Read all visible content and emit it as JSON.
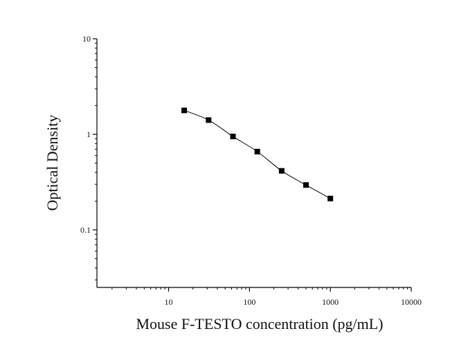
{
  "chart_data": {
    "type": "scatter",
    "title": "",
    "xlabel": "Mouse F-TESTO concentration (pg/mL)",
    "ylabel": "Optical Density",
    "xscale": "log",
    "yscale": "log",
    "xlim": [
      1.3,
      10000
    ],
    "ylim": [
      0.025,
      10
    ],
    "x_ticks": [
      10,
      100,
      1000,
      10000
    ],
    "x_tick_labels": [
      "10",
      "100",
      "1000",
      "10000"
    ],
    "y_ticks": [
      0.1,
      1,
      10
    ],
    "y_tick_labels": [
      "0.1",
      "1",
      "10"
    ],
    "grid": false,
    "legend": "none",
    "series": [
      {
        "x": [
          15.6,
          31.25,
          62.5,
          125,
          250,
          500,
          1000
        ],
        "y": [
          1.78,
          1.41,
          0.95,
          0.66,
          0.415,
          0.295,
          0.213
        ],
        "marker": "square",
        "fit_curve": true
      }
    ],
    "colors": {
      "axis": "#000000",
      "marker": "#000000",
      "curve": "#000000"
    }
  }
}
